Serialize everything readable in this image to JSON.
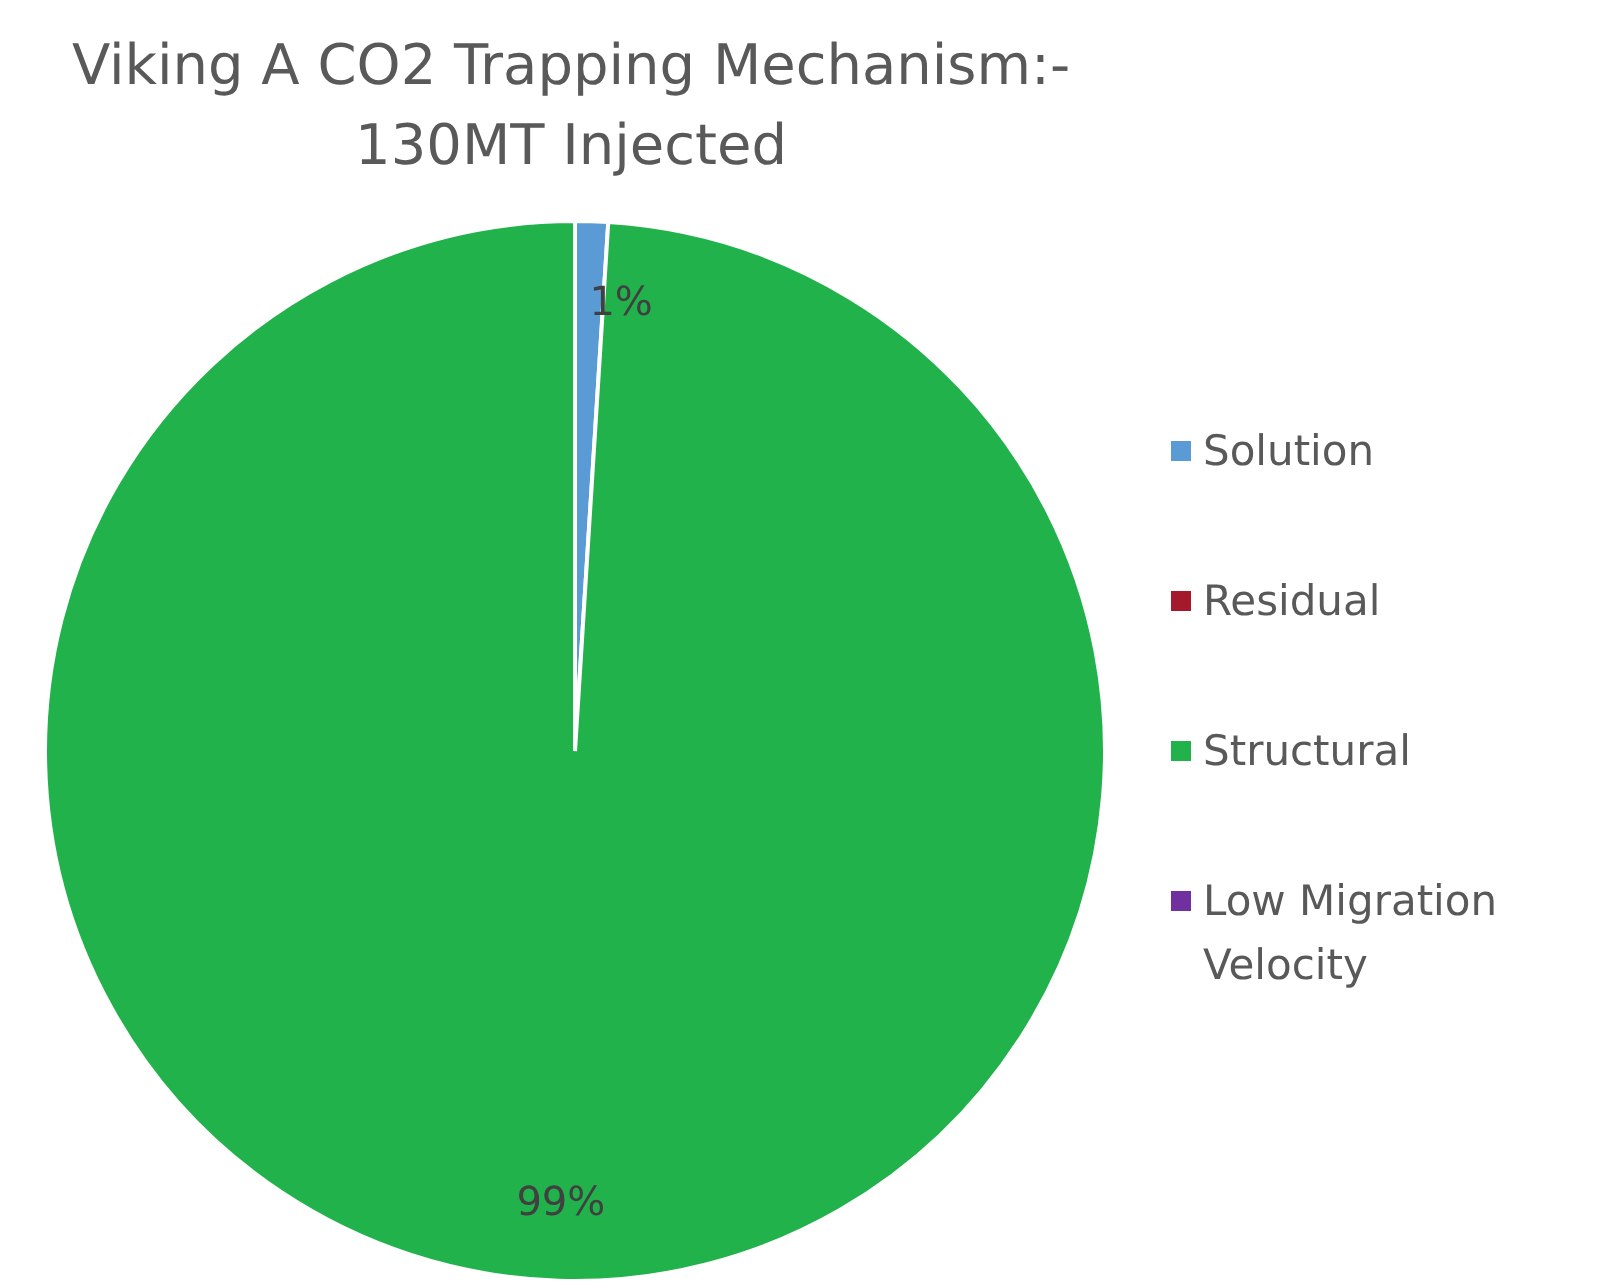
{
  "chart_data": {
    "type": "pie",
    "title": "Viking A CO2 Trapping Mechanism:- 130MT Injected",
    "categories": [
      "Solution",
      "Residual",
      "Structural",
      "Low Migration Velocity"
    ],
    "values": [
      1,
      0,
      99,
      0
    ],
    "colors": [
      "#5b9bd5",
      "#a5192d",
      "#21b24b",
      "#7030a0"
    ],
    "value_labels": [
      "1%",
      null,
      "99%",
      null
    ],
    "legend": "right"
  }
}
